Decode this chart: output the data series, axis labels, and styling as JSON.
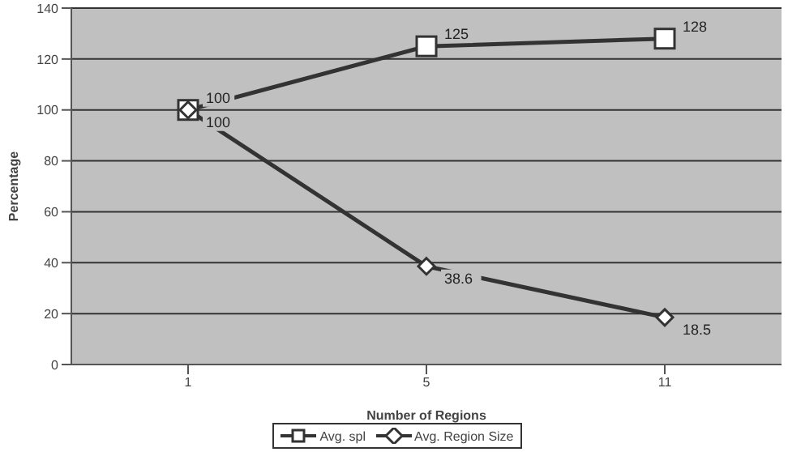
{
  "chart_data": {
    "type": "line",
    "xlabel": "Number of Regions",
    "ylabel": "Percentage",
    "categories": [
      "1",
      "5",
      "11"
    ],
    "series": [
      {
        "name": "Avg. spl",
        "color": "#333333",
        "marker": "square",
        "values": [
          100,
          125,
          128
        ]
      },
      {
        "name": "Avg. Region Size",
        "color": "#333333",
        "marker": "diamond",
        "values": [
          100,
          38.6,
          18.5
        ]
      }
    ],
    "ylim": [
      0,
      140
    ],
    "yticks": [
      0,
      20,
      40,
      60,
      80,
      100,
      120,
      140
    ],
    "grid": "y",
    "legend": "bottom",
    "data_labels": true
  }
}
